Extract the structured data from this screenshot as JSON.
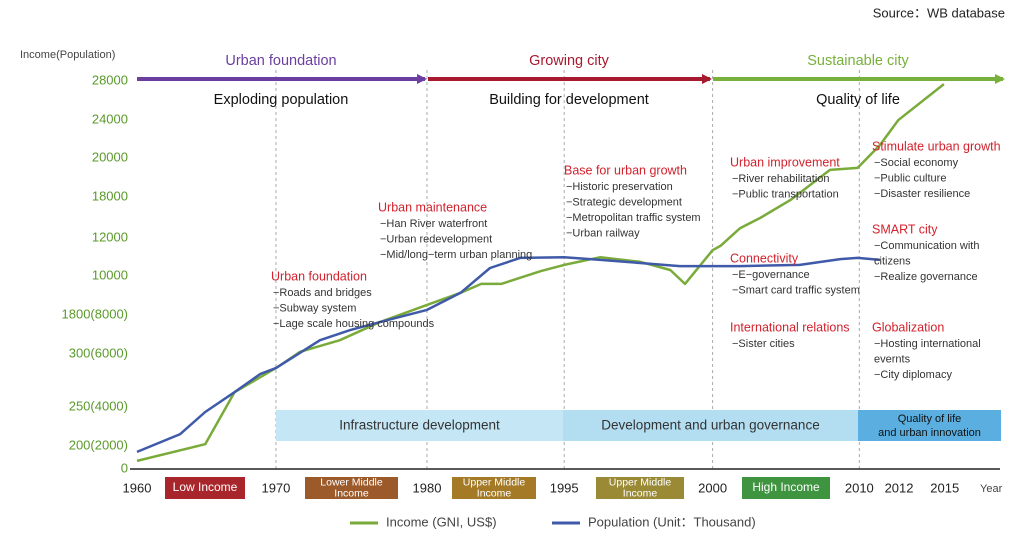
{
  "chart_data": {
    "type": "line",
    "source": "Source：WB database",
    "ylabel": "Income(Population)",
    "xlabel": "Year",
    "xlim": [
      0,
      100
    ],
    "ylim": [
      0,
      100
    ],
    "xticks": [
      {
        "value": 0,
        "label": "1960"
      },
      {
        "value": 16.1,
        "label": "1970"
      },
      {
        "value": 33.6,
        "label": "1980"
      },
      {
        "value": 49.5,
        "label": "1995"
      },
      {
        "value": 66.7,
        "label": "2000"
      },
      {
        "value": 83.7,
        "label": "2010"
      },
      {
        "value": 88.3,
        "label": "2012"
      },
      {
        "value": 93.6,
        "label": "2015"
      }
    ],
    "yticks": [
      0,
      {
        "value": 5.9,
        "label": "200(2000)"
      },
      {
        "value": 16,
        "label": "250(4000)"
      },
      {
        "value": 29.6,
        "label": "300(6000)"
      },
      {
        "value": 39.7,
        "label": "1800(8000)"
      },
      {
        "value": 49.7,
        "label": "10000"
      },
      {
        "value": 59.5,
        "label": "12000"
      },
      {
        "value": 70.1,
        "label": "18000"
      },
      {
        "value": 80.2,
        "label": "20000"
      },
      {
        "value": 89.9,
        "label": "24000"
      },
      {
        "value": 100,
        "label": "28000"
      }
    ],
    "series": [
      {
        "name": "Income (GNI, US$)",
        "color": "#7aab3a",
        "x": [
          0,
          7.9,
          11.3,
          16.1,
          18.9,
          23.5,
          28.2,
          33.6,
          37.5,
          39.9,
          42.2,
          46.8,
          49.5,
          53.7,
          58.3,
          61.8,
          63.5,
          66.7,
          67.6,
          69.9,
          72.2,
          75.7,
          80.3,
          83.5,
          86.1,
          88.2,
          93.5
        ],
        "values": [
          2.1,
          6.4,
          19.8,
          26.0,
          30.2,
          33.2,
          37.9,
          42.3,
          45.4,
          47.7,
          47.7,
          51.0,
          52.6,
          54.6,
          53.4,
          51.3,
          47.7,
          56.4,
          57.5,
          62.1,
          64.7,
          69.3,
          77.1,
          77.6,
          83.5,
          89.9,
          99.2
        ]
      },
      {
        "name": "Population (Unit：Thousand)",
        "color": "#3f5aa8",
        "x": [
          0,
          5.0,
          7.9,
          11.3,
          14.3,
          16.1,
          21.2,
          24.7,
          28.2,
          33.6,
          37.5,
          40.9,
          44.4,
          49.5,
          53.7,
          58.3,
          62.9,
          66.7,
          69.9,
          76.8,
          81.5,
          83.5,
          86.1
        ],
        "values": [
          4.4,
          9.0,
          14.7,
          19.8,
          24.5,
          26.0,
          33.2,
          35.8,
          37.9,
          41.0,
          45.4,
          51.8,
          54.4,
          54.6,
          53.9,
          53.1,
          52.3,
          52.3,
          52.3,
          52.6,
          54.1,
          54.4,
          53.9
        ]
      }
    ],
    "phases": [
      {
        "title": "Urban foundation",
        "subtitle": "Exploding population",
        "color": "#6a3fa0"
      },
      {
        "title": "Growing city",
        "subtitle": "Building for development",
        "color": "#a6192e"
      },
      {
        "title": "Sustainable city",
        "subtitle": "Quality of life",
        "color": "#77b13b"
      }
    ],
    "annotations": [
      {
        "title": "Urban foundation",
        "items": [
          "−Roads and bridges",
          "−Subway system",
          "−Lage scale housing compounds"
        ]
      },
      {
        "title": "Urban maintenance",
        "items": [
          "−Han River waterfront",
          "−Urban redevelopment",
          "−Mid/long−term urban planning"
        ]
      },
      {
        "title": "Base for urban growth",
        "items": [
          "−Historic preservation",
          "−Strategic development",
          "−Metropolitan traffic system",
          "−Urban railway"
        ]
      },
      {
        "title": "Urban improvement",
        "items": [
          "−River rehabilitation",
          "−Public transportation"
        ]
      },
      {
        "title": "Connectivity",
        "items": [
          "−E−governance",
          "−Smart card traffic system"
        ]
      },
      {
        "title": "International relations",
        "items": [
          "−Sister cities"
        ]
      },
      {
        "title": "Stimulate urban growth",
        "items": [
          "−Social economy",
          "−Public culture",
          "−Disaster resilience"
        ]
      },
      {
        "title": "SMART city",
        "items": [
          "−Communication with",
          "citizens",
          "−Realize governance"
        ]
      },
      {
        "title": "Globalization",
        "items": [
          "−Hosting international",
          "evernts",
          "−City diplomacy"
        ]
      }
    ],
    "bands": [
      {
        "lines": [
          "Infrastructure development"
        ],
        "color": "#c4e6f5"
      },
      {
        "lines": [
          "Development and urban governance"
        ],
        "color": "#b3def2"
      },
      {
        "lines": [
          "Quality of life",
          "and urban innovation"
        ],
        "color": "#5aafe0"
      }
    ],
    "income_levels": [
      {
        "lines": [
          "Low Income"
        ],
        "color": "#a8262b"
      },
      {
        "lines": [
          "Lower Middle",
          "Income"
        ],
        "color": "#9c5a2a"
      },
      {
        "lines": [
          "Upper Middle",
          "Income"
        ],
        "color": "#a47a26"
      },
      {
        "lines": [
          "Upper Middle",
          "Income"
        ],
        "color": "#9a8a35"
      },
      {
        "lines": [
          "High Income"
        ],
        "color": "#3f9440"
      }
    ]
  }
}
